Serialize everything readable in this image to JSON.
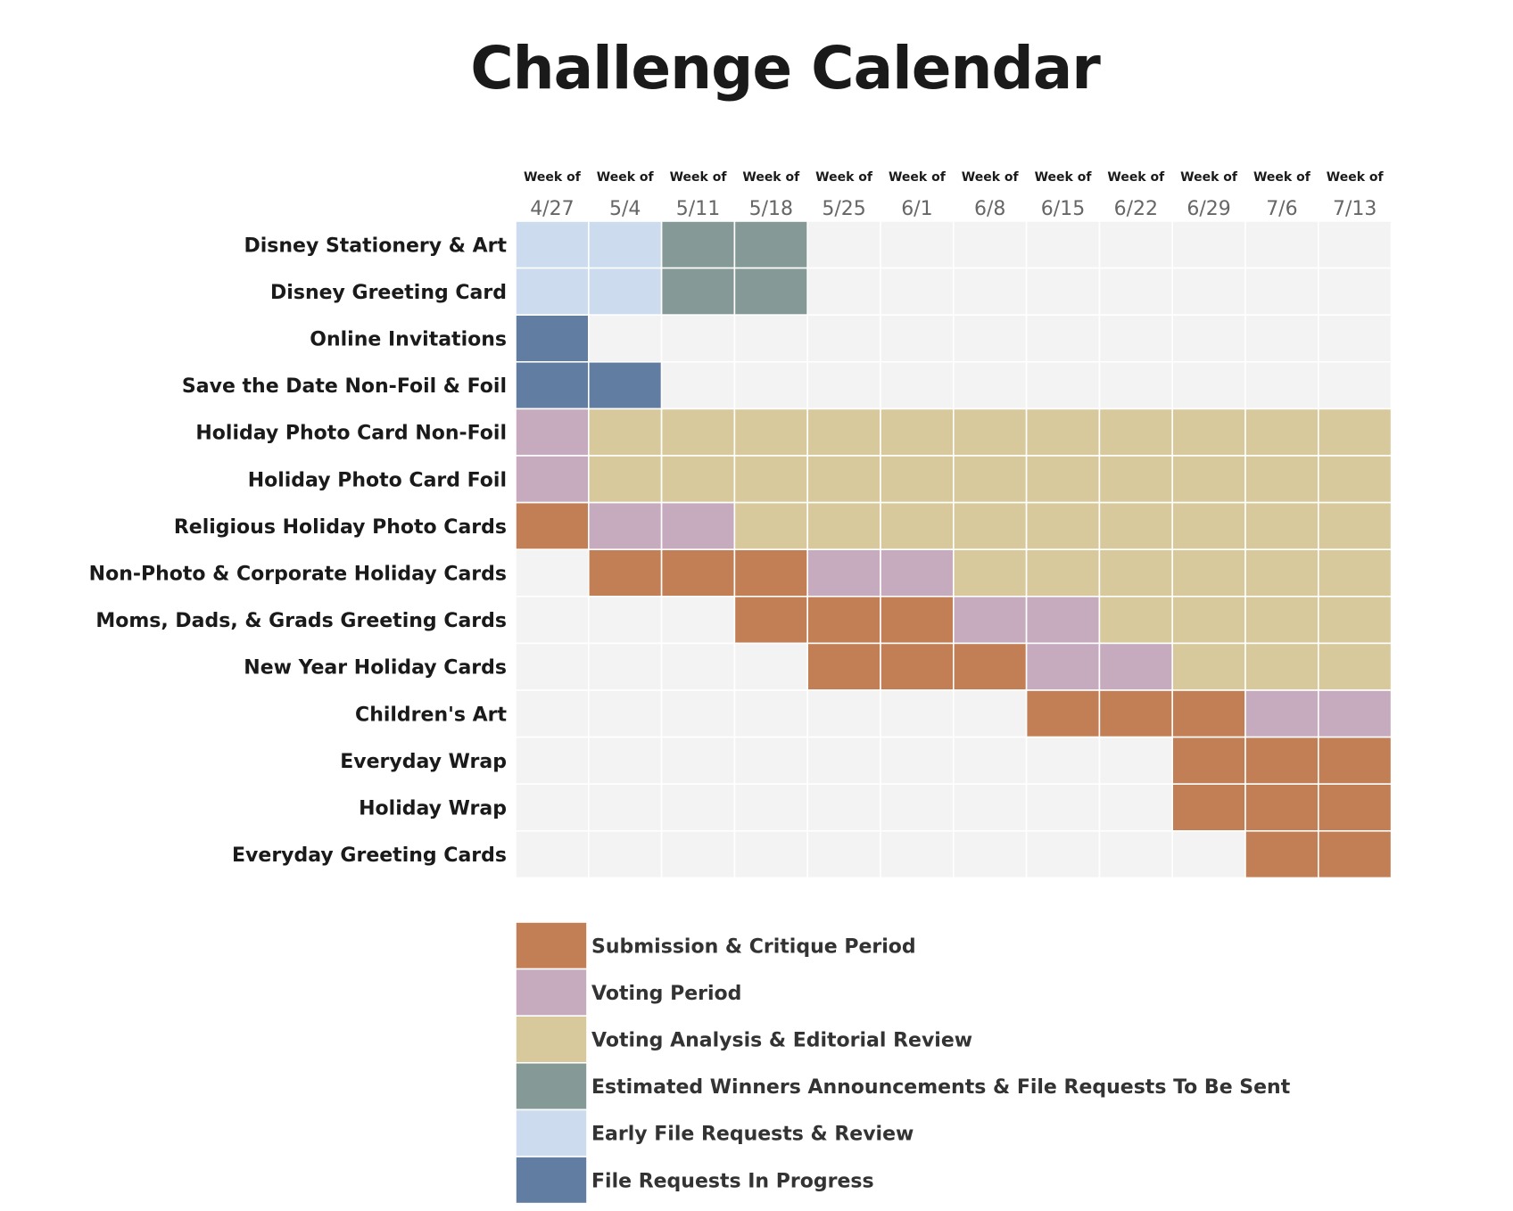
{
  "title": "Challenge Calendar",
  "chart_data": {
    "type": "heatmap",
    "title": "Challenge Calendar",
    "column_header_top": "Week of",
    "columns": [
      "4/27",
      "5/4",
      "5/11",
      "5/18",
      "5/25",
      "6/1",
      "6/8",
      "6/15",
      "6/22",
      "6/29",
      "7/6",
      "7/13"
    ],
    "rows": [
      "Disney Stationery & Art",
      "Disney Greeting Card",
      "Online Invitations",
      "Save the Date Non-Foil & Foil",
      "Holiday Photo Card Non-Foil",
      "Holiday Photo Card Foil",
      "Religious Holiday Photo Cards",
      "Non-Photo & Corporate Holiday Cards",
      "Moms, Dads, & Grads Greeting Cards",
      "New Year Holiday Cards",
      "Children's Art",
      "Everyday Wrap",
      "Holiday Wrap",
      "Everyday Greeting Cards"
    ],
    "categories": [
      {
        "key": "submission",
        "label": "Submission & Critique Period",
        "color": "#c27e54"
      },
      {
        "key": "voting",
        "label": "Voting Period",
        "color": "#c6abbf"
      },
      {
        "key": "analysis",
        "label": "Voting Analysis & Editorial Review",
        "color": "#d8c99d"
      },
      {
        "key": "winners",
        "label": "Estimated Winners Announcements & File Requests To Be Sent",
        "color": "#859a96"
      },
      {
        "key": "early",
        "label": "Early File Requests & Review",
        "color": "#ccdcee"
      },
      {
        "key": "progress",
        "label": "File Requests In Progress",
        "color": "#617ea2"
      }
    ],
    "empty_color": "#f3f3f3",
    "cells": [
      [
        "early",
        "early",
        "winners",
        "winners",
        null,
        null,
        null,
        null,
        null,
        null,
        null,
        null
      ],
      [
        "early",
        "early",
        "winners",
        "winners",
        null,
        null,
        null,
        null,
        null,
        null,
        null,
        null
      ],
      [
        "progress",
        null,
        null,
        null,
        null,
        null,
        null,
        null,
        null,
        null,
        null,
        null
      ],
      [
        "progress",
        "progress",
        null,
        null,
        null,
        null,
        null,
        null,
        null,
        null,
        null,
        null
      ],
      [
        "voting",
        "analysis",
        "analysis",
        "analysis",
        "analysis",
        "analysis",
        "analysis",
        "analysis",
        "analysis",
        "analysis",
        "analysis",
        "analysis"
      ],
      [
        "voting",
        "analysis",
        "analysis",
        "analysis",
        "analysis",
        "analysis",
        "analysis",
        "analysis",
        "analysis",
        "analysis",
        "analysis",
        "analysis"
      ],
      [
        "submission",
        "voting",
        "voting",
        "analysis",
        "analysis",
        "analysis",
        "analysis",
        "analysis",
        "analysis",
        "analysis",
        "analysis",
        "analysis"
      ],
      [
        null,
        "submission",
        "submission",
        "submission",
        "voting",
        "voting",
        "analysis",
        "analysis",
        "analysis",
        "analysis",
        "analysis",
        "analysis"
      ],
      [
        null,
        null,
        null,
        "submission",
        "submission",
        "submission",
        "voting",
        "voting",
        "analysis",
        "analysis",
        "analysis",
        "analysis"
      ],
      [
        null,
        null,
        null,
        null,
        "submission",
        "submission",
        "submission",
        "voting",
        "voting",
        "analysis",
        "analysis",
        "analysis"
      ],
      [
        null,
        null,
        null,
        null,
        null,
        null,
        null,
        "submission",
        "submission",
        "submission",
        "voting",
        "voting"
      ],
      [
        null,
        null,
        null,
        null,
        null,
        null,
        null,
        null,
        null,
        "submission",
        "submission",
        "submission"
      ],
      [
        null,
        null,
        null,
        null,
        null,
        null,
        null,
        null,
        null,
        "submission",
        "submission",
        "submission"
      ],
      [
        null,
        null,
        null,
        null,
        null,
        null,
        null,
        null,
        null,
        null,
        "submission",
        "submission"
      ]
    ],
    "legend_position": "bottom"
  }
}
